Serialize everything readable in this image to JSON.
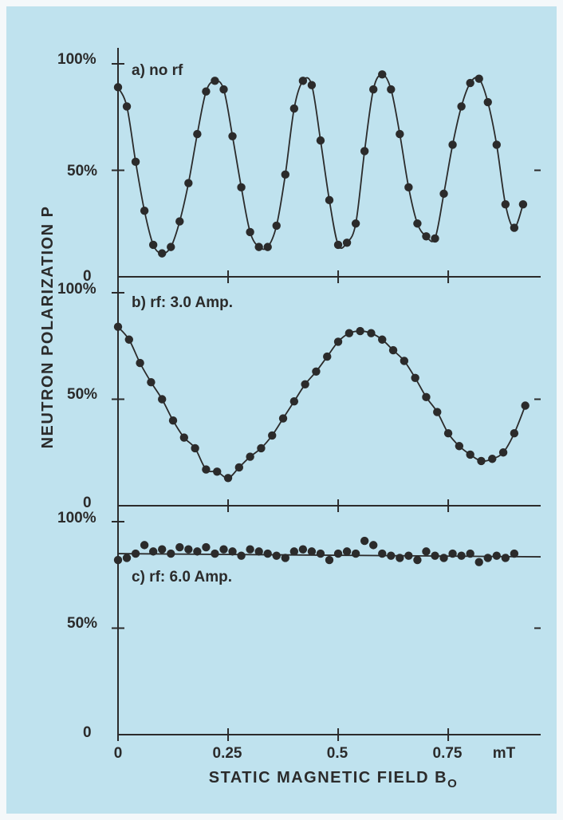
{
  "colors": {
    "background": "#bfe2ee",
    "frame": "#f4f8fa",
    "ink": "#2b2b2b"
  },
  "axis": {
    "xlabel_main": "STATIC MAGNETIC FIELD B",
    "xlabel_sub": "O",
    "ylabel": "NEUTRON POLARIZATION P",
    "x_unit": "mT",
    "x_ticks": [
      {
        "value": 0,
        "label": "0"
      },
      {
        "value": 0.25,
        "label": "0.25"
      },
      {
        "value": 0.5,
        "label": "0.5"
      },
      {
        "value": 0.75,
        "label": "0.75"
      }
    ],
    "y_labels": {
      "p1_top": "100%",
      "p1_mid": "50%",
      "p1_zero": "0",
      "p2_top": "100%",
      "p2_mid": "50%",
      "p2_zero": "0",
      "p3_top": "100%",
      "p3_mid": "50%",
      "p3_zero": "0"
    }
  },
  "chart_data": [
    {
      "type": "scatter",
      "title": "a) no rf",
      "xlim": [
        0,
        0.96
      ],
      "ylim": [
        0,
        100
      ],
      "series": [
        {
          "x": [
            0.0,
            0.02,
            0.04,
            0.06,
            0.08,
            0.1,
            0.12,
            0.14,
            0.16,
            0.18,
            0.2,
            0.22,
            0.24,
            0.26,
            0.28,
            0.3,
            0.32,
            0.34,
            0.36,
            0.38,
            0.4,
            0.42,
            0.44,
            0.46,
            0.48,
            0.5,
            0.52,
            0.54,
            0.56,
            0.58,
            0.6,
            0.62,
            0.64,
            0.66,
            0.68,
            0.7,
            0.72,
            0.74,
            0.76,
            0.78,
            0.8,
            0.82,
            0.84,
            0.86,
            0.88,
            0.9,
            0.92
          ],
          "y": [
            89,
            80,
            54,
            31,
            15,
            11,
            14,
            26,
            44,
            67,
            87,
            92,
            88,
            66,
            42,
            21,
            14,
            14,
            24,
            48,
            79,
            92,
            90,
            64,
            36,
            15,
            16,
            25,
            59,
            88,
            95,
            88,
            67,
            42,
            25,
            19,
            18,
            39,
            62,
            80,
            91,
            93,
            82,
            62,
            34,
            23,
            34
          ]
        }
      ]
    },
    {
      "type": "scatter",
      "title": "b) rf: 3.0 Amp.",
      "xlim": [
        0,
        0.96
      ],
      "ylim": [
        0,
        100
      ],
      "series": [
        {
          "x": [
            0.0,
            0.025,
            0.05,
            0.075,
            0.1,
            0.125,
            0.15,
            0.175,
            0.2,
            0.225,
            0.25,
            0.275,
            0.3,
            0.325,
            0.35,
            0.375,
            0.4,
            0.425,
            0.45,
            0.475,
            0.5,
            0.525,
            0.55,
            0.575,
            0.6,
            0.625,
            0.65,
            0.675,
            0.7,
            0.725,
            0.75,
            0.775,
            0.8,
            0.825,
            0.85,
            0.875,
            0.9,
            0.925
          ],
          "y": [
            84,
            78,
            67,
            58,
            50,
            40,
            32,
            27,
            17,
            16,
            13,
            18,
            23,
            27,
            33,
            41,
            49,
            57,
            63,
            70,
            77,
            81,
            82,
            81,
            78,
            73,
            68,
            60,
            51,
            44,
            34,
            28,
            24,
            21,
            22,
            25,
            34,
            47
          ]
        }
      ]
    },
    {
      "type": "scatter",
      "title": "c) rf: 6.0 Amp.",
      "xlim": [
        0,
        0.96
      ],
      "ylim": [
        0,
        100
      ],
      "series": [
        {
          "x": [
            0.0,
            0.02,
            0.04,
            0.06,
            0.08,
            0.1,
            0.12,
            0.14,
            0.16,
            0.18,
            0.2,
            0.22,
            0.24,
            0.26,
            0.28,
            0.3,
            0.32,
            0.34,
            0.36,
            0.38,
            0.4,
            0.42,
            0.44,
            0.46,
            0.48,
            0.5,
            0.52,
            0.54,
            0.56,
            0.58,
            0.6,
            0.62,
            0.64,
            0.66,
            0.68,
            0.7,
            0.72,
            0.74,
            0.76,
            0.78,
            0.8,
            0.82,
            0.84,
            0.86,
            0.88,
            0.9
          ],
          "y": [
            82,
            83,
            85,
            89,
            86,
            87,
            85,
            88,
            87,
            86,
            88,
            85,
            87,
            86,
            84,
            87,
            86,
            85,
            84,
            83,
            86,
            87,
            86,
            85,
            82,
            85,
            86,
            85,
            91,
            89,
            85,
            84,
            83,
            84,
            82,
            86,
            84,
            83,
            85,
            84,
            85,
            81,
            83,
            84,
            83,
            85
          ]
        }
      ]
    }
  ]
}
